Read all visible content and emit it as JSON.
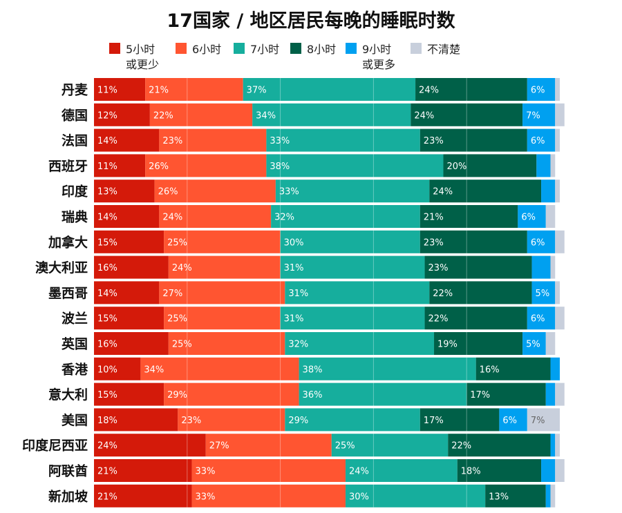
{
  "chart_data": {
    "type": "bar",
    "orientation": "horizontal",
    "stacked": true,
    "normalized": true,
    "title": "17国家 / 地区居民每晚的睡眠时数",
    "xlabel": "",
    "ylabel": "",
    "xlim": [
      0,
      100
    ],
    "grid": true,
    "legend_position": "top",
    "categories": [
      "丹麦",
      "德国",
      "法国",
      "西班牙",
      "印度",
      "瑞典",
      "加拿大",
      "澳大利亚",
      "墨西哥",
      "波兰",
      "英国",
      "香港",
      "意大利",
      "美国",
      "印度尼西亚",
      "阿联酋",
      "新加坡"
    ],
    "series": [
      {
        "name": "5小时\n或更少",
        "color": "#D41A0A",
        "values": [
          11,
          12,
          14,
          11,
          13,
          14,
          15,
          16,
          14,
          15,
          16,
          10,
          15,
          18,
          24,
          21,
          21
        ],
        "labels": [
          "11%",
          "12%",
          "14%",
          "11%",
          "13%",
          "14%",
          "15%",
          "16%",
          "14%",
          "15%",
          "16%",
          "10%",
          "15%",
          "18%",
          "24%",
          "21%",
          "21%"
        ]
      },
      {
        "name": "6小时",
        "color": "#FF5531",
        "values": [
          21,
          22,
          23,
          26,
          26,
          24,
          25,
          24,
          27,
          25,
          25,
          34,
          29,
          23,
          27,
          33,
          33
        ],
        "labels": [
          "21%",
          "22%",
          "23%",
          "26%",
          "26%",
          "24%",
          "25%",
          "24%",
          "27%",
          "25%",
          "25%",
          "34%",
          "29%",
          "23%",
          "27%",
          "33%",
          "33%"
        ]
      },
      {
        "name": "7小时",
        "color": "#16AE9D",
        "values": [
          37,
          34,
          33,
          38,
          33,
          32,
          30,
          31,
          31,
          31,
          32,
          38,
          36,
          29,
          25,
          24,
          30
        ],
        "labels": [
          "37%",
          "34%",
          "33%",
          "38%",
          "33%",
          "32%",
          "30%",
          "31%",
          "31%",
          "31%",
          "32%",
          "38%",
          "36%",
          "29%",
          "25%",
          "24%",
          "30%"
        ]
      },
      {
        "name": "8小时",
        "color": "#006048",
        "values": [
          24,
          24,
          23,
          20,
          24,
          21,
          23,
          23,
          22,
          22,
          19,
          16,
          17,
          17,
          22,
          18,
          13
        ],
        "labels": [
          "24%",
          "24%",
          "23%",
          "20%",
          "24%",
          "21%",
          "23%",
          "23%",
          "22%",
          "22%",
          "19%",
          "16%",
          "17%",
          "17%",
          "22%",
          "18%",
          "13%"
        ]
      },
      {
        "name": "9小时\n或更多",
        "color": "#00A0F0",
        "values": [
          6,
          7,
          6,
          3,
          3,
          6,
          6,
          4,
          5,
          6,
          5,
          2,
          2,
          6,
          1,
          3,
          1
        ],
        "labels": [
          "6%",
          "7%",
          "6%",
          "",
          "",
          "6%",
          "6%",
          "",
          "5%",
          "6%",
          "5%",
          "",
          "",
          "6%",
          "",
          "",
          ""
        ]
      },
      {
        "name": "不清楚",
        "color": "#C8CFDC",
        "values": [
          1,
          2,
          1,
          1,
          1,
          2,
          2,
          1,
          1,
          2,
          2,
          0,
          2,
          7,
          1,
          2,
          1
        ],
        "labels": [
          "",
          "",
          "",
          "",
          "",
          "",
          "",
          "",
          "",
          "",
          "",
          "",
          "",
          "7%",
          "",
          "",
          ""
        ]
      }
    ]
  }
}
